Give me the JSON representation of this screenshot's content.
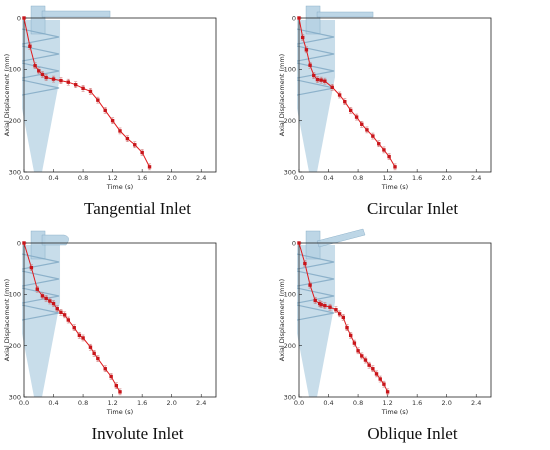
{
  "chart_data": [
    {
      "type": "line",
      "caption": "Tangential Inlet",
      "xlabel": "Time (s)",
      "ylabel": "Axial Displacement (mm)",
      "xlim": [
        0,
        2.6
      ],
      "ylim": [
        0,
        300
      ],
      "xticks": [
        "0.0",
        "0.4",
        "0.8",
        "1.2",
        "1.6",
        "2.0",
        "2.4"
      ],
      "yticks": [
        "0",
        "100",
        "200",
        "300"
      ],
      "inlet": "tangential",
      "series": [
        {
          "x": [
            0.0,
            0.08,
            0.15,
            0.2,
            0.25,
            0.3,
            0.4,
            0.5,
            0.6,
            0.7,
            0.8,
            0.9,
            1.0,
            1.1,
            1.2,
            1.3,
            1.4,
            1.5,
            1.6,
            1.7
          ],
          "y": [
            0,
            55,
            93,
            103,
            110,
            116,
            119,
            122,
            125,
            130,
            137,
            143,
            160,
            180,
            200,
            220,
            235,
            247,
            262,
            290
          ]
        }
      ]
    },
    {
      "type": "line",
      "caption": "Circular Inlet",
      "xlabel": "Time (s)",
      "ylabel": "Axial Displacement (mm)",
      "xlim": [
        0,
        2.6
      ],
      "ylim": [
        0,
        300
      ],
      "xticks": [
        "0.0",
        "0.4",
        "0.8",
        "1.2",
        "1.6",
        "2.0",
        "2.4"
      ],
      "yticks": [
        "0",
        "100",
        "200",
        "300"
      ],
      "inlet": "circular",
      "series": [
        {
          "x": [
            0.0,
            0.05,
            0.1,
            0.15,
            0.2,
            0.25,
            0.3,
            0.35,
            0.45,
            0.55,
            0.62,
            0.7,
            0.78,
            0.85,
            0.92,
            1.0,
            1.08,
            1.15,
            1.22,
            1.3
          ],
          "y": [
            0,
            38,
            62,
            92,
            112,
            120,
            121,
            123,
            135,
            150,
            163,
            180,
            193,
            207,
            218,
            230,
            245,
            257,
            270,
            290
          ]
        }
      ]
    },
    {
      "type": "line",
      "caption": "Involute Inlet",
      "xlabel": "Time (s)",
      "ylabel": "Axial Displacement (mm)",
      "xlim": [
        0,
        2.6
      ],
      "ylim": [
        0,
        300
      ],
      "xticks": [
        "0.0",
        "0.4",
        "0.8",
        "1.2",
        "1.6",
        "2.0",
        "2.4"
      ],
      "yticks": [
        "0",
        "100",
        "200",
        "300"
      ],
      "inlet": "involute",
      "series": [
        {
          "x": [
            0.0,
            0.1,
            0.18,
            0.25,
            0.3,
            0.35,
            0.4,
            0.45,
            0.5,
            0.55,
            0.6,
            0.68,
            0.75,
            0.8,
            0.9,
            0.95,
            1.0,
            1.1,
            1.18,
            1.25,
            1.3
          ],
          "y": [
            0,
            48,
            90,
            103,
            108,
            113,
            118,
            128,
            135,
            140,
            150,
            165,
            180,
            185,
            203,
            215,
            225,
            245,
            260,
            278,
            290
          ]
        }
      ]
    },
    {
      "type": "line",
      "caption": "Oblique Inlet",
      "xlabel": "Time (s)",
      "ylabel": "Axial Displacement (mm)",
      "xlim": [
        0,
        2.6
      ],
      "ylim": [
        0,
        300
      ],
      "xticks": [
        "0.0",
        "0.4",
        "0.8",
        "1.2",
        "1.6",
        "2.0",
        "2.4"
      ],
      "yticks": [
        "0",
        "100",
        "200",
        "300"
      ],
      "inlet": "oblique",
      "series": [
        {
          "x": [
            0.0,
            0.08,
            0.15,
            0.22,
            0.28,
            0.3,
            0.35,
            0.42,
            0.5,
            0.55,
            0.6,
            0.65,
            0.7,
            0.75,
            0.8,
            0.85,
            0.9,
            0.95,
            1.0,
            1.05,
            1.1,
            1.15,
            1.2
          ],
          "y": [
            0,
            40,
            82,
            112,
            118,
            120,
            122,
            125,
            130,
            138,
            145,
            165,
            180,
            195,
            210,
            220,
            228,
            238,
            245,
            255,
            265,
            275,
            290
          ]
        }
      ]
    }
  ],
  "colors": {
    "series": "#e0191c",
    "marker": "#c8151a",
    "error": "#c86a6a",
    "cyclone_fill": "#b6d2e3",
    "cyclone_dark": "#7da6c2",
    "axis": "#222222"
  }
}
